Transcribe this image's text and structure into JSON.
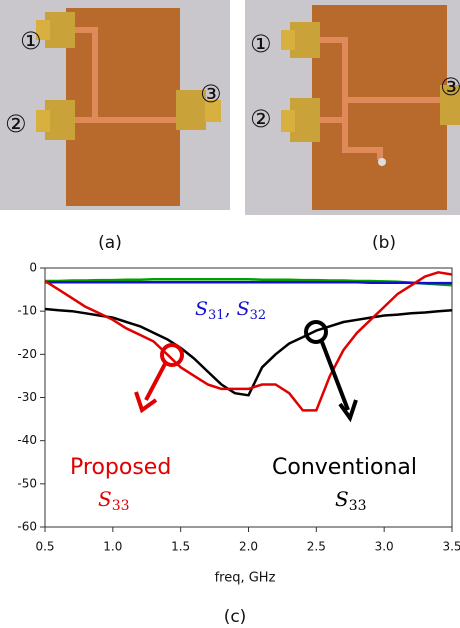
{
  "figure": {
    "panels": [
      {
        "label": "(a)",
        "ports": [
          "①",
          "②",
          "③"
        ]
      },
      {
        "label": "(b)",
        "ports": [
          "①",
          "②",
          "③"
        ]
      }
    ],
    "chart_label": "(c)"
  },
  "chart_data": {
    "type": "line",
    "xlabel": "freq, GHz",
    "x": [
      0.5,
      0.6,
      0.7,
      0.8,
      0.9,
      1.0,
      1.1,
      1.2,
      1.3,
      1.4,
      1.5,
      1.6,
      1.7,
      1.8,
      1.9,
      2.0,
      2.1,
      2.2,
      2.3,
      2.4,
      2.5,
      2.6,
      2.7,
      2.8,
      2.9,
      3.0,
      3.1,
      3.2,
      3.3,
      3.4,
      3.5
    ],
    "series": [
      {
        "color": "#00a000",
        "values": [
          -3,
          -3,
          -2.9,
          -2.9,
          -2.8,
          -2.8,
          -2.7,
          -2.7,
          -2.6,
          -2.6,
          -2.6,
          -2.6,
          -2.6,
          -2.6,
          -2.6,
          -2.6,
          -2.7,
          -2.7,
          -2.7,
          -2.8,
          -2.8,
          -2.9,
          -2.9,
          -3,
          -3,
          -3.1,
          -3.2,
          -3.4,
          -3.6,
          -3.8,
          -4
        ]
      },
      {
        "color": "#1010d0",
        "values": [
          -3.3,
          -3.3,
          -3.3,
          -3.3,
          -3.3,
          -3.3,
          -3.3,
          -3.3,
          -3.3,
          -3.3,
          -3.3,
          -3.3,
          -3.3,
          -3.3,
          -3.3,
          -3.3,
          -3.3,
          -3.3,
          -3.3,
          -3.3,
          -3.3,
          -3.3,
          -3.3,
          -3.3,
          -3.4,
          -3.4,
          -3.4,
          -3.4,
          -3.5,
          -3.5,
          -3.5
        ]
      },
      {
        "color": "#000000",
        "values": [
          -9.5,
          -9.8,
          -10,
          -10.5,
          -11,
          -11.5,
          -12.5,
          -13.5,
          -15,
          -16.5,
          -18.5,
          -21,
          -24,
          -27,
          -29,
          -29.5,
          -23,
          -20,
          -17.5,
          -16,
          -14.5,
          -13.5,
          -12.5,
          -12,
          -11.5,
          -11,
          -10.8,
          -10.5,
          -10.3,
          -10,
          -9.8
        ]
      },
      {
        "color": "#e00000",
        "values": [
          -3,
          -5,
          -7,
          -9,
          -10.5,
          -12,
          -14,
          -15.5,
          -17,
          -20,
          -23,
          -25,
          -27,
          -28,
          -28,
          -28,
          -27,
          -27,
          -29,
          -33,
          -33,
          -25,
          -19,
          -15,
          -12,
          -9,
          -6,
          -4,
          -2,
          -1,
          -1.5
        ]
      }
    ],
    "xlim": [
      0.5,
      3.5
    ],
    "ylim": [
      -60,
      0
    ],
    "xticks": [
      0.5,
      {
        "value": 1,
        "label": "1.0"
      },
      1.5,
      {
        "value": 2,
        "label": "2.0"
      },
      2.5,
      {
        "value": 3,
        "label": "3.0"
      },
      3.5
    ],
    "yticks": [
      0,
      -10,
      -20,
      -30,
      -40,
      -50,
      -60
    ],
    "annotations": {
      "proposed": "Proposed",
      "proposed_sym": "S",
      "proposed_sub": "33",
      "conventional": "Conventional",
      "conventional_sym": "S",
      "conventional_sub": "33",
      "coupling_sym1": "S",
      "coupling_sub1": "31",
      "coupling_sep": ",",
      "coupling_sym2": "S",
      "coupling_sub2": "32"
    }
  }
}
